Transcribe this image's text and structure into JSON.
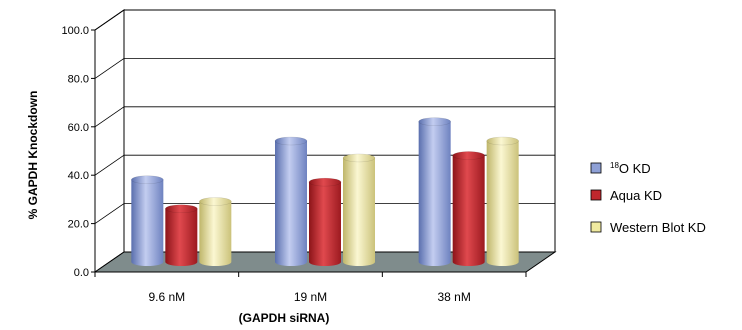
{
  "chart_data": {
    "type": "bar",
    "title": "",
    "ylabel": "% GAPDH Knockdown",
    "xlabel": "(GAPDH siRNA)",
    "categories": [
      "9.6 nM",
      "19 nM",
      "38 nM"
    ],
    "ylim": [
      0,
      100
    ],
    "yticks": [
      "0.0",
      "20.0",
      "40.0",
      "60.0",
      "80.0",
      "100.0"
    ],
    "grid": true,
    "legend_position": "right",
    "series": [
      {
        "legend_super": "18",
        "legend_rest": "O KD",
        "color": "#8ea0d6",
        "values": [
          34,
          50,
          58
        ]
      },
      {
        "name": "Aqua KD",
        "color": "#c0272d",
        "values": [
          22,
          33,
          44
        ]
      },
      {
        "name": "Western Blot KD",
        "color": "#f0eaa0",
        "values": [
          25,
          43,
          50
        ]
      }
    ]
  }
}
